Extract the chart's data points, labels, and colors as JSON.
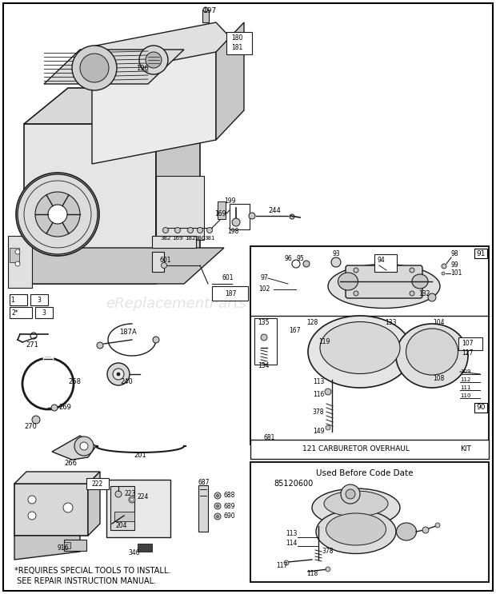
{
  "bg_color": "#ffffff",
  "line_color": "#1a1a1a",
  "light_gray": "#e0e0e0",
  "mid_gray": "#c8c8c8",
  "dark_gray": "#a0a0a0",
  "watermark": "eReplacementParts",
  "footer1": "*REQUIRES SPECIAL TOOLS TO INSTALL.",
  "footer2": " SEE REPAIR INSTRUCTION MANUAL.",
  "kit_label": "121 CARBURETOR OVERHAUL",
  "kit_label2": "KIT",
  "used_before_title": "Used Before Code Date",
  "used_before_code": "85120600"
}
